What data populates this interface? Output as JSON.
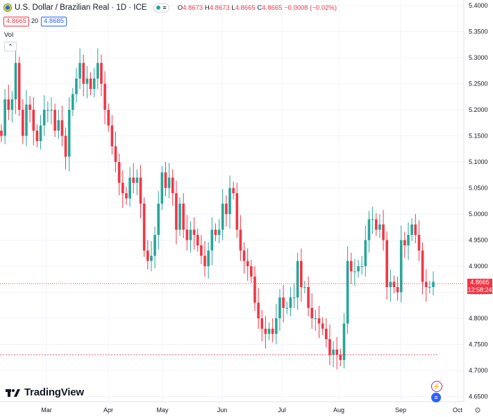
{
  "header": {
    "title": "U.S. Dollar / Brazilian Real · 1D · ICE",
    "open_label": "O",
    "open": "4.8673",
    "high_label": "H",
    "high": "4.8673",
    "low_label": "L",
    "low": "4.8665",
    "close_label": "C",
    "close": "4.8665",
    "change": "−0.0008 (−0.02%)",
    "sell_price": "4.8665",
    "spread": "20",
    "buy_price": "4.8685",
    "volume_label": "Vol"
  },
  "brand": {
    "name": "TradingView"
  },
  "current_price": {
    "value": "4.8665",
    "countdown": "12:58:24"
  },
  "colors": {
    "up": "#26a69a",
    "down": "#f23645",
    "grid": "#f0f3fa",
    "axis_text": "#131722"
  },
  "chart_data": {
    "type": "candlestick",
    "title": "U.S. Dollar / Brazilian Real · 1D · ICE",
    "ylim": [
      4.64,
      5.41
    ],
    "y_ticks": [
      "5.4000",
      "5.3500",
      "5.3000",
      "5.2500",
      "5.2000",
      "5.1500",
      "5.1000",
      "5.0500",
      "5.0000",
      "4.9500",
      "4.9000",
      "4.8500",
      "4.8000",
      "4.7500",
      "4.7000",
      "4.6500"
    ],
    "x_ticks": [
      "Mar",
      "Apr",
      "May",
      "Jun",
      "Jul",
      "Aug",
      "Sep",
      "Oct"
    ],
    "grid": true,
    "last_price": 4.8665,
    "reference_line": 4.73,
    "close_series": [
      5.15,
      5.22,
      5.2,
      5.22,
      5.29,
      5.2,
      5.15,
      5.21,
      5.2,
      5.16,
      5.14,
      5.17,
      5.2,
      5.2,
      5.2,
      5.16,
      5.18,
      5.15,
      5.11,
      5.2,
      5.23,
      5.26,
      5.29,
      5.25,
      5.26,
      5.24,
      5.26,
      5.29,
      5.25,
      5.2,
      5.17,
      5.13,
      5.1,
      5.06,
      5.04,
      5.03,
      5.07,
      5.06,
      5.07,
      5.02,
      4.93,
      4.91,
      4.92,
      4.96,
      5.02,
      5.08,
      5.05,
      5.07,
      5.04,
      4.97,
      5.02,
      4.97,
      4.95,
      4.97,
      4.96,
      4.94,
      4.92,
      4.9,
      4.93,
      4.97,
      4.96,
      4.97,
      5.02,
      5.0,
      5.05,
      5.04,
      4.97,
      4.93,
      4.91,
      4.9,
      4.88,
      4.83,
      4.8,
      4.78,
      4.77,
      4.78,
      4.77,
      4.8,
      4.84,
      4.82,
      4.82,
      4.84,
      4.84,
      4.91,
      4.86,
      4.86,
      4.82,
      4.8,
      4.8,
      4.79,
      4.78,
      4.76,
      4.73,
      4.74,
      4.73,
      4.72,
      4.79,
      4.91,
      4.89,
      4.89,
      4.9,
      4.9,
      4.95,
      4.99,
      4.99,
      4.97,
      4.98,
      4.95,
      4.86,
      4.87,
      4.86,
      4.85,
      4.95,
      4.94,
      4.96,
      4.98,
      4.96,
      4.93,
      4.87,
      4.86,
      4.86,
      4.87
    ]
  }
}
